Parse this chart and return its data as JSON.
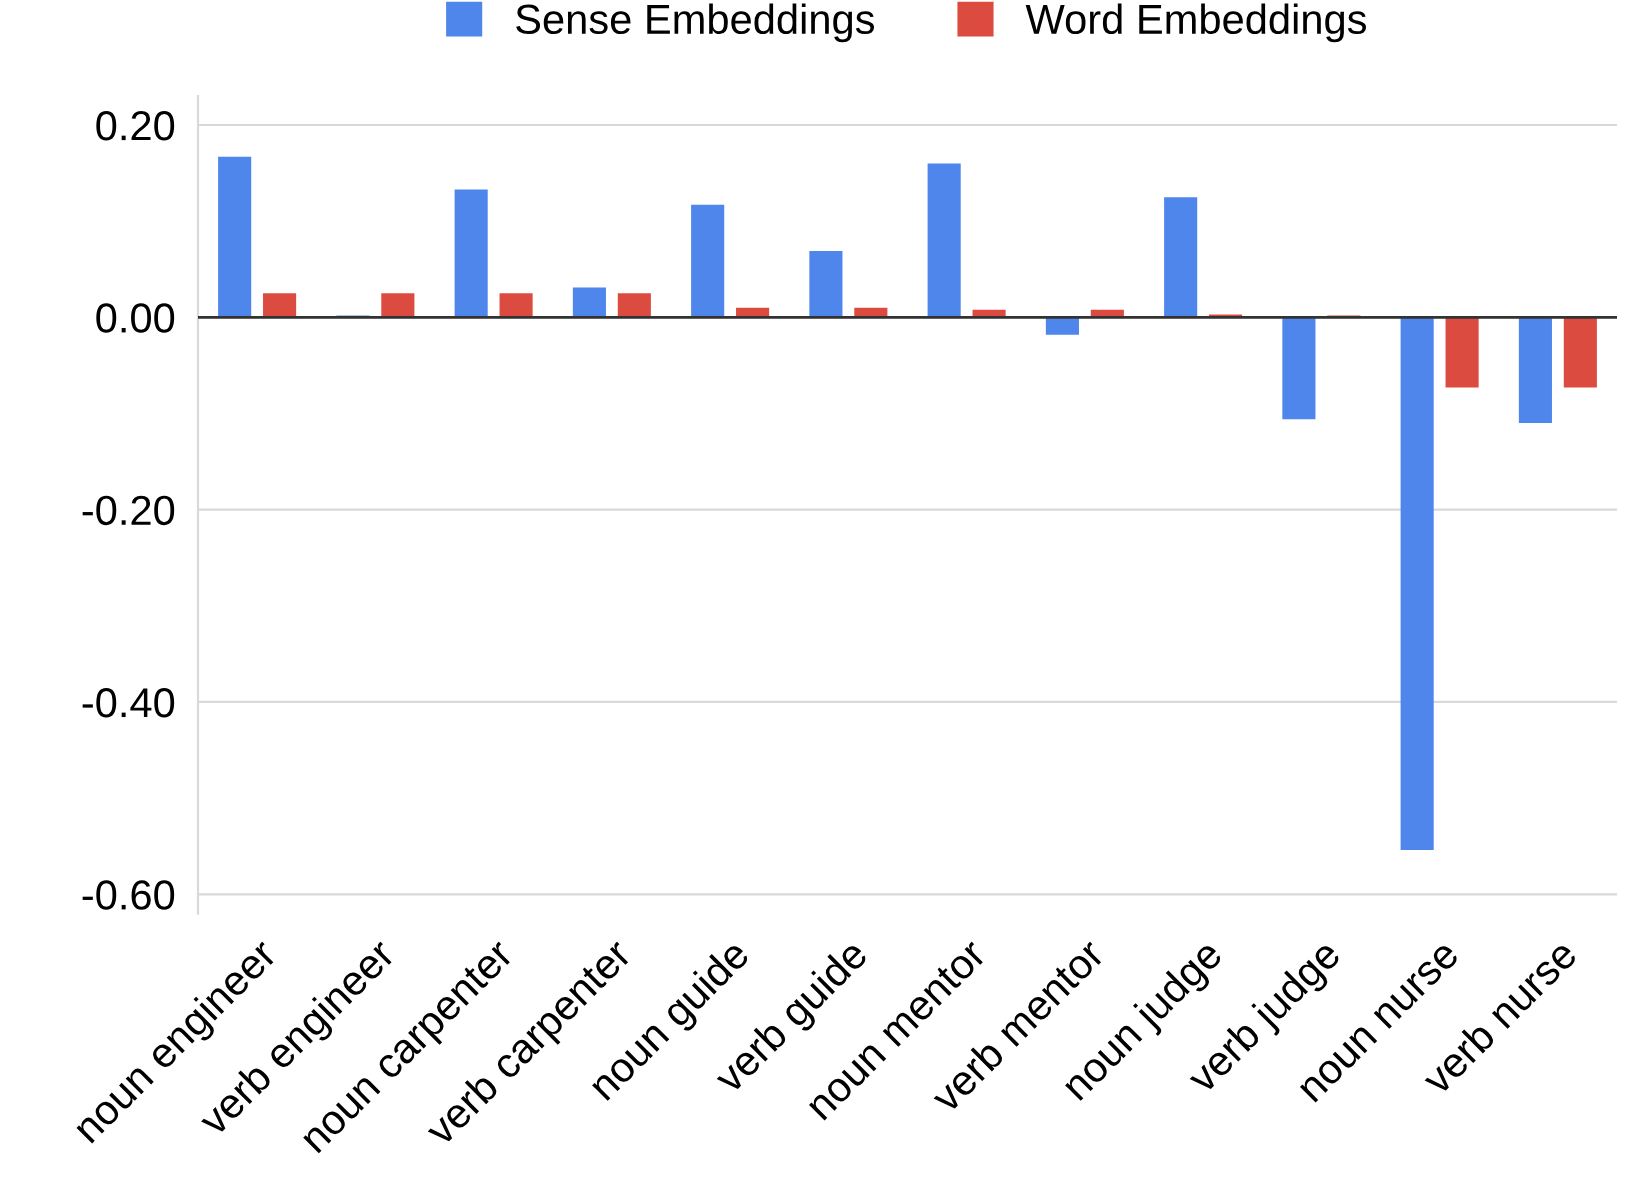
{
  "chart_data": {
    "type": "bar",
    "categories": [
      "noun engineer",
      "verb engineer",
      "noun carpenter",
      "verb carpenter",
      "noun guide",
      "verb guide",
      "noun mentor",
      "verb mentor",
      "noun judge",
      "verb judge",
      "noun nurse",
      "verb nurse"
    ],
    "series": [
      {
        "name": "Sense Embeddings",
        "color": "#4e86ec",
        "values": [
          0.167,
          0.002,
          0.133,
          0.031,
          0.117,
          0.069,
          0.16,
          -0.018,
          0.125,
          -0.106,
          -0.554,
          -0.11
        ]
      },
      {
        "name": "Word Embeddings",
        "color": "#dc4b3f",
        "values": [
          0.025,
          0.025,
          0.025,
          0.025,
          0.01,
          0.01,
          0.008,
          0.008,
          0.003,
          0.002,
          -0.073,
          -0.073
        ]
      }
    ],
    "ylim": [
      -0.62,
      0.23
    ],
    "yticks": [
      {
        "value": -0.6,
        "label": "-0.60"
      },
      {
        "value": -0.4,
        "label": "-0.40"
      },
      {
        "value": -0.2,
        "label": "-0.20"
      },
      {
        "value": 0,
        "label": "0.00"
      },
      {
        "value": 0.2,
        "label": "0.20"
      }
    ],
    "grid": "y",
    "legend": "top"
  }
}
